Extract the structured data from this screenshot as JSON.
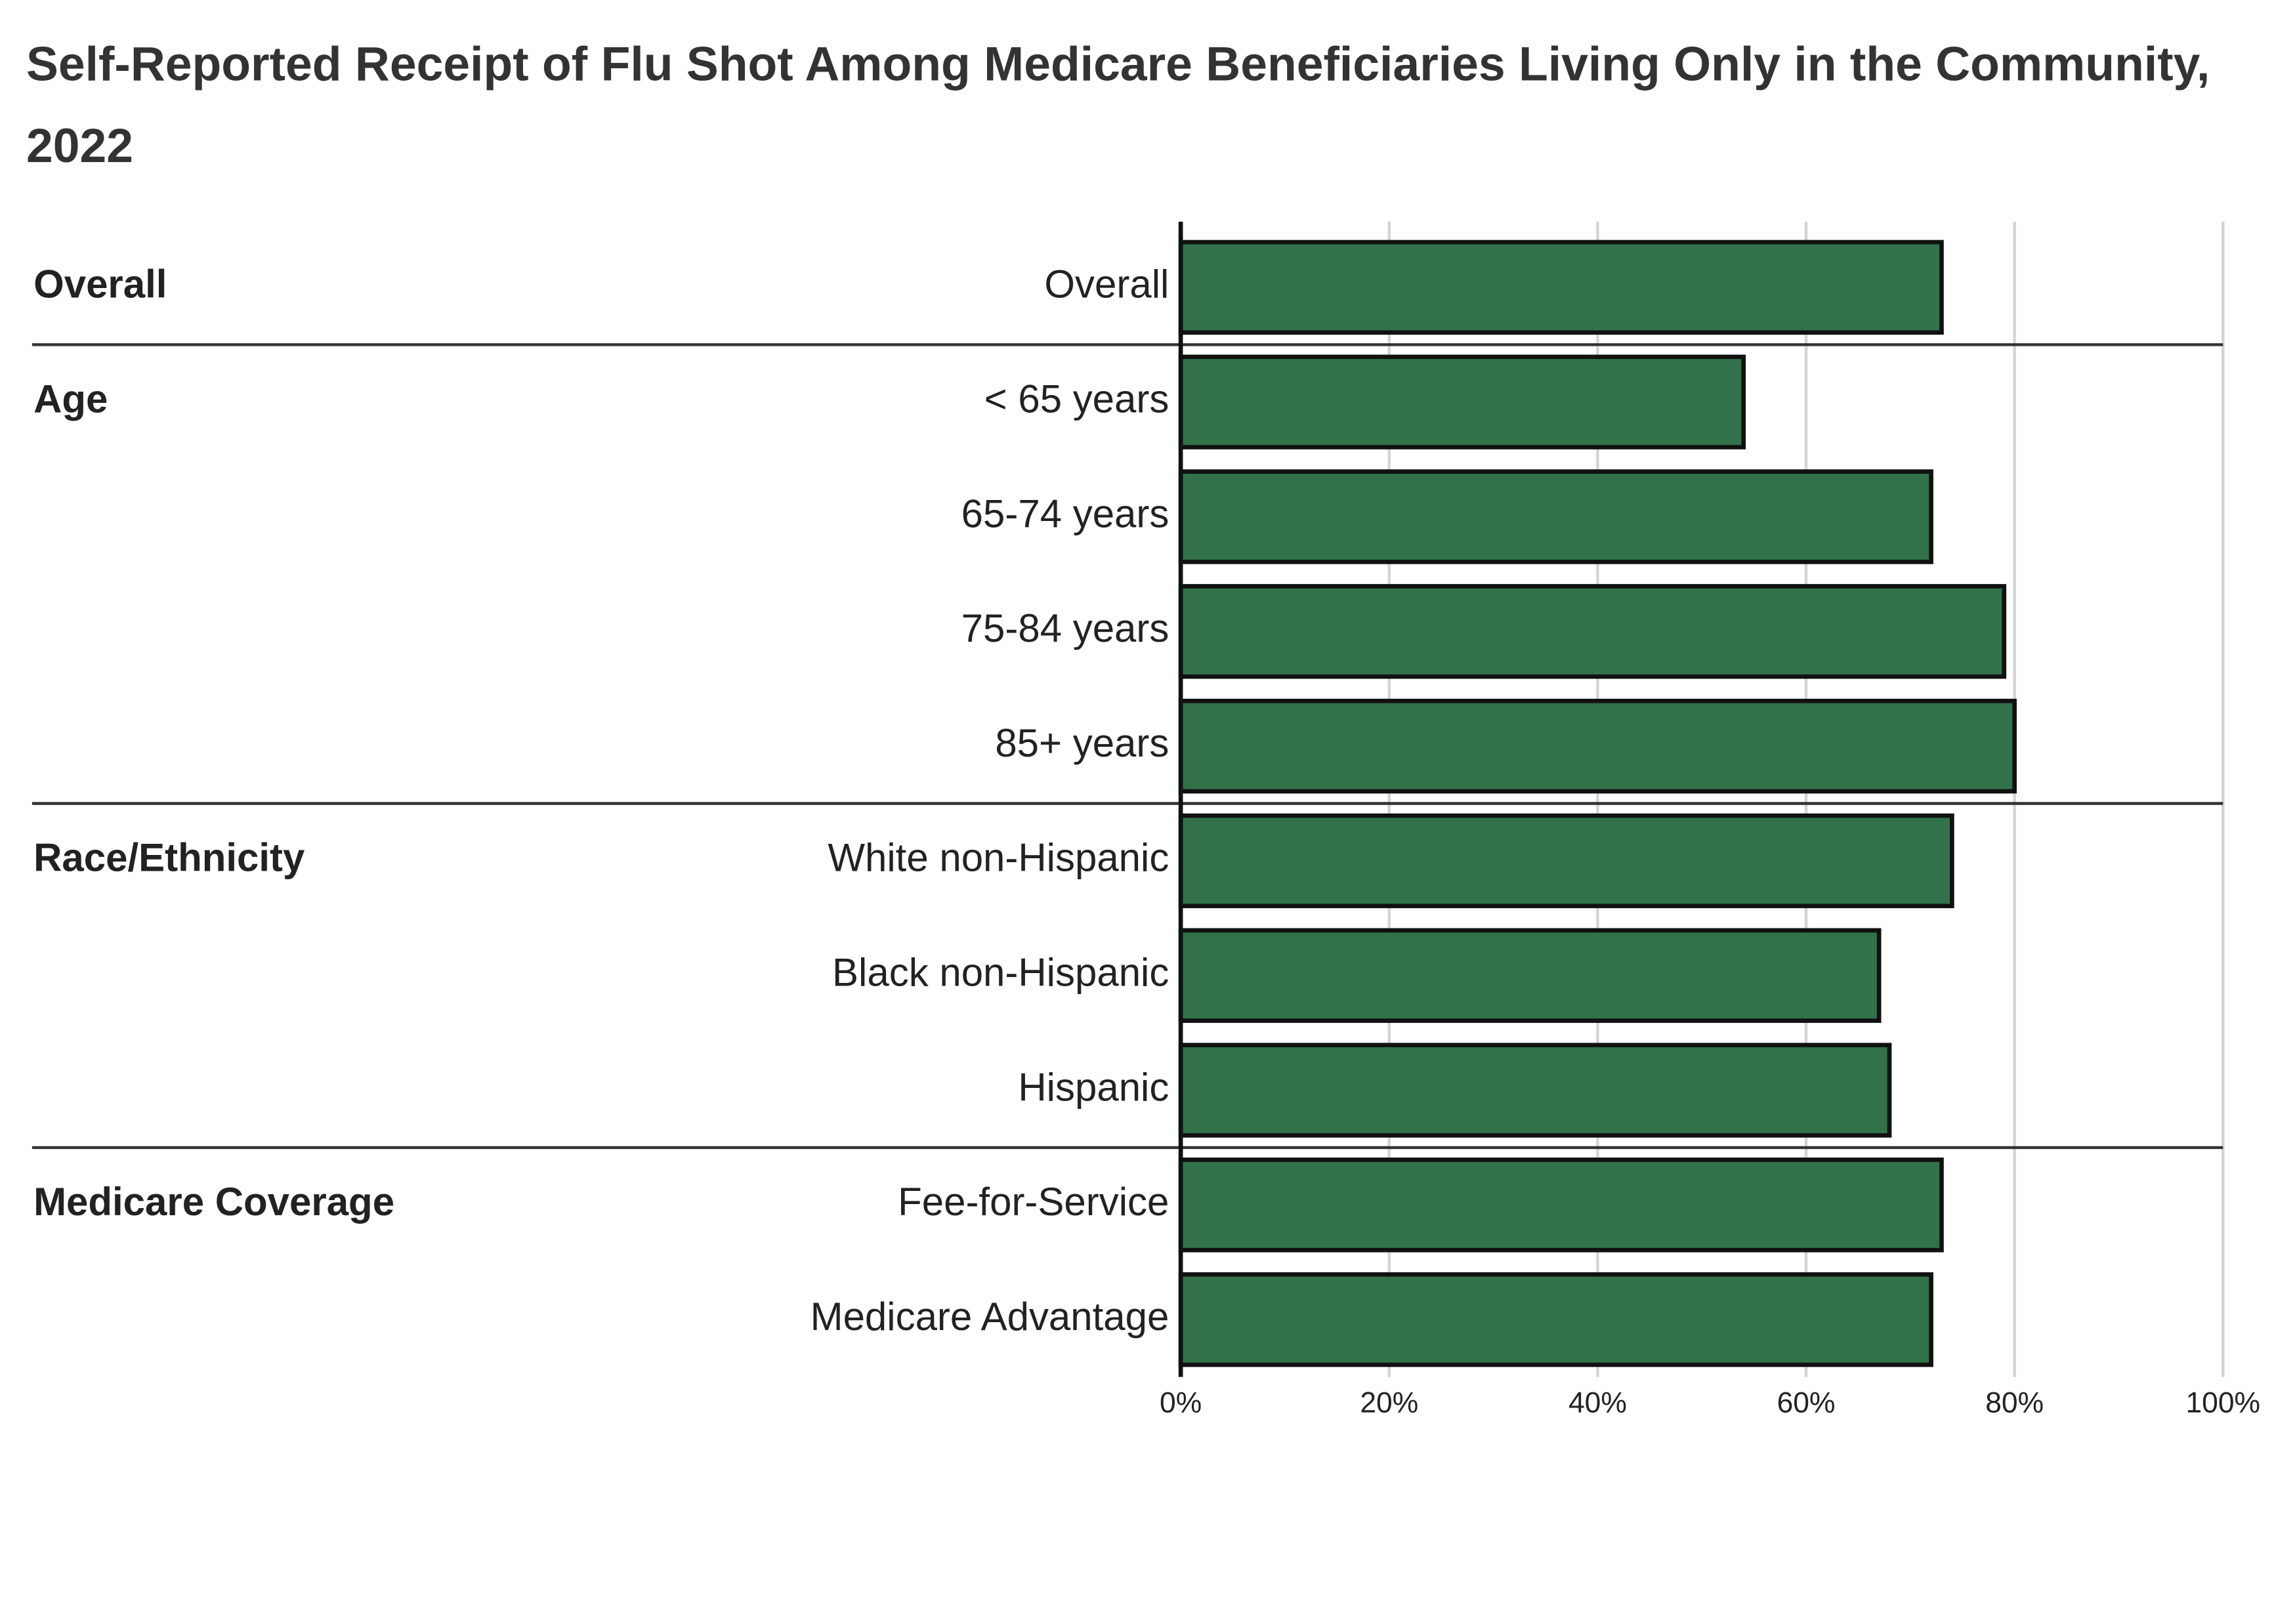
{
  "chart_data": {
    "type": "bar",
    "title": "Self-Reported Receipt of Flu Shot Among Medicare Beneficiaries Living Only in the Community, 2022",
    "groups": [
      {
        "name": "Overall",
        "categories": [
          "Overall"
        ],
        "values": [
          73
        ]
      },
      {
        "name": "Age",
        "categories": [
          "< 65 years",
          "65-74 years",
          "75-84 years",
          "85+ years"
        ],
        "values": [
          54,
          72,
          79,
          80
        ]
      },
      {
        "name": "Race/Ethnicity",
        "categories": [
          "White non-Hispanic",
          "Black non-Hispanic",
          "Hispanic"
        ],
        "values": [
          74,
          67,
          68
        ]
      },
      {
        "name": "Medicare Coverage",
        "categories": [
          "Fee-for-Service",
          "Medicare Advantage"
        ],
        "values": [
          73,
          72
        ]
      }
    ],
    "color": "#31724a",
    "xlim": [
      0,
      100
    ],
    "xticks": [
      {
        "value": 0,
        "label": "0%"
      },
      {
        "value": 20,
        "label": "20%"
      },
      {
        "value": 40,
        "label": "40%"
      },
      {
        "value": 60,
        "label": "60%"
      },
      {
        "value": 80,
        "label": "80%"
      },
      {
        "value": 100,
        "label": "100%"
      }
    ],
    "grid": true
  }
}
